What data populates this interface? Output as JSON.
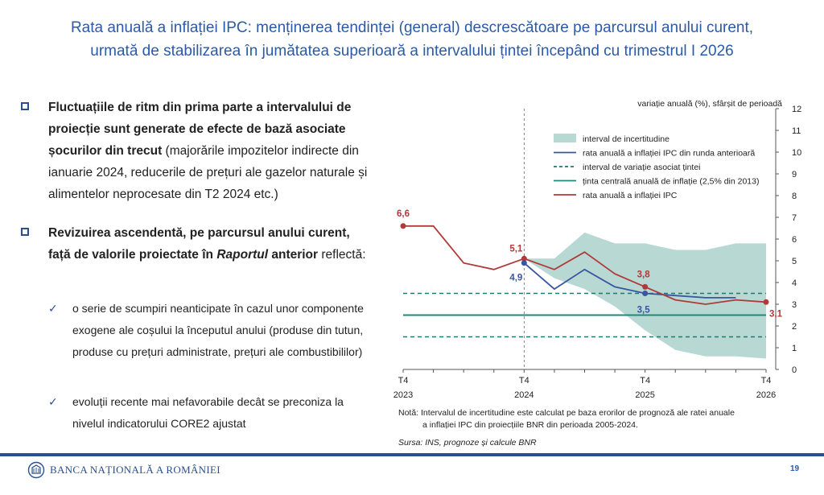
{
  "slide": {
    "title_line1": "Rata anuală a inflației IPC: menținerea tendinței (general) descrescătoare pe parcursul anului curent,",
    "title_line2": "urmată de stabilizarea în jumătatea superioară a intervalului țintei începând cu trimestrul I 2026",
    "bullet1": {
      "bold": "Fluctuațiile de ritm din prima parte a intervalului de proiecție sunt generate de efecte de bază asociate șocurilor din trecut",
      "normal": " (majorările impozitelor indirecte din ianuarie 2024, reducerile de prețuri ale gazelor naturale și alimentelor neprocesate din T2 2024 etc.)"
    },
    "bullet2": {
      "bold_a": "Revizuirea ascendentă, pe parcursul anului curent, față de valorile proiectate în ",
      "bold_italic": "Raportul",
      "bold_b": " anterior",
      "normal": " reflectă:"
    },
    "sub1": "o serie de scumpiri neanticipate în cazul unor componente exogene ale coșului la începutul anului (produse din tutun, produse cu prețuri administrate, prețuri ale combustibililor)",
    "sub2": "evoluții recente mai nefavorabile decât se preconiza la nivelul indicatorului CORE2 ajustat",
    "note_line1": "Notă: Intervalul de incertitudine este calculat pe baza erorilor de prognoză ale ratei anuale",
    "note_line2": "a inflației IPC din proiecțiile BNR din perioada 2005-2024.",
    "source": "Sursa: INS, prognoze și calcule BNR",
    "logo_text": "BANCA NAȚIONALĂ A ROMÂNIEI",
    "page_number": "19",
    "colors": {
      "accent": "#2a5aa8",
      "band": "#b7d8d3",
      "previous_round": "#3a56a0",
      "target_interval": "#1d7a72",
      "central_target": "#1e8a7c",
      "cpi": "#b03a3a"
    }
  },
  "chart_data": {
    "type": "line",
    "ylabel": "variație anuală (%), sfârșit de perioadă",
    "ylim": [
      0,
      12
    ],
    "yticks": [
      "0",
      "1",
      "2",
      "3",
      "4",
      "5",
      "6",
      "7",
      "8",
      "9",
      "10",
      "11",
      "12"
    ],
    "x_tick_labels": [
      {
        "q": 0,
        "line1": "T4",
        "line2": "2023"
      },
      {
        "q": 4,
        "line1": "T4",
        "line2": "2024"
      },
      {
        "q": 8,
        "line1": "T4",
        "line2": "2025"
      },
      {
        "q": 12,
        "line1": "T4",
        "line2": "2026"
      }
    ],
    "legend": [
      "interval de incertitudine",
      "rata anuală a inflației IPC din runda anterioară",
      "interval de variație asociat țintei",
      "ținta centrală anuală de inflație (2,5% din 2013)",
      "rata anuală a inflației IPC"
    ],
    "legend_position": "top",
    "uncertainty_band": {
      "q": [
        4,
        5,
        6,
        7,
        8,
        9,
        10,
        11,
        12
      ],
      "upper": [
        5.1,
        5.1,
        6.3,
        5.8,
        5.8,
        5.5,
        5.5,
        5.8,
        5.8
      ],
      "lower": [
        5.1,
        4.2,
        3.7,
        2.9,
        1.8,
        0.9,
        0.6,
        0.6,
        0.5
      ]
    },
    "cpi": {
      "q": [
        0,
        1,
        2,
        3,
        4,
        5,
        6,
        7,
        8,
        9,
        10,
        11,
        12
      ],
      "values": [
        6.6,
        6.6,
        4.9,
        4.6,
        5.1,
        4.6,
        5.4,
        4.4,
        3.8,
        3.2,
        3.0,
        3.2,
        3.1
      ]
    },
    "previous_round": {
      "q": [
        4,
        5,
        6,
        7,
        8,
        9,
        10,
        11
      ],
      "values": [
        4.9,
        3.7,
        4.6,
        3.8,
        3.5,
        3.4,
        3.3,
        3.3
      ]
    },
    "central_target": 2.5,
    "target_interval": [
      1.5,
      3.5
    ],
    "projection_start_q": 4,
    "data_labels": [
      {
        "q": 0,
        "text": "6,6",
        "series": "cpi"
      },
      {
        "q": 4,
        "text": "5,1",
        "series": "cpi"
      },
      {
        "q": 4,
        "text": "4,9",
        "series": "previous_round"
      },
      {
        "q": 8,
        "text": "3,8",
        "series": "cpi"
      },
      {
        "q": 8,
        "text": "3,5",
        "series": "previous_round"
      },
      {
        "q": 12,
        "text": "3,1",
        "series": "cpi"
      }
    ]
  }
}
